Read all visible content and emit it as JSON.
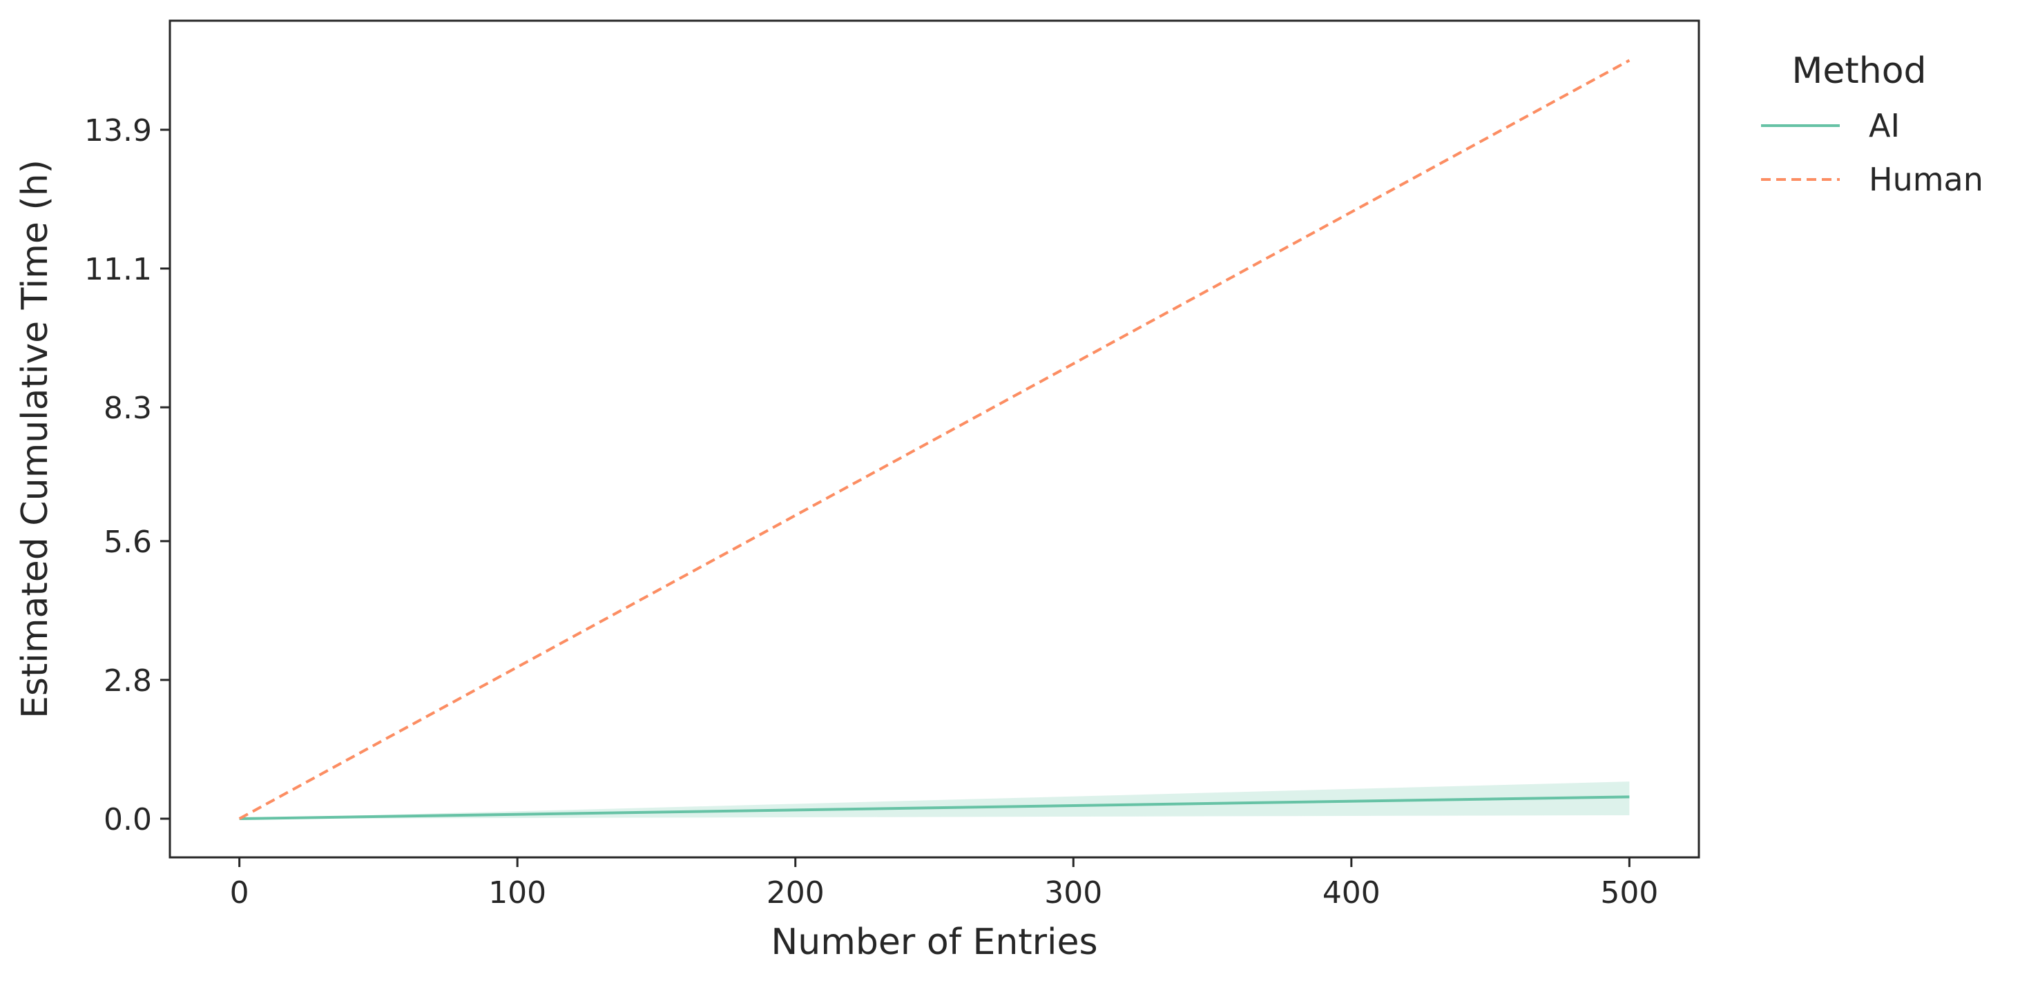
{
  "chart_data": {
    "type": "line",
    "xlabel": "Number of Entries",
    "ylabel": "Estimated Cumulative Time (h)",
    "x_ticks": [
      0,
      100,
      200,
      300,
      400,
      500
    ],
    "y_ticks": [
      "0.0",
      "2.8",
      "5.6",
      "8.3",
      "11.1",
      "13.9"
    ],
    "xlim": [
      -25,
      525
    ],
    "ylim": [
      -0.78,
      16.1
    ],
    "grid": false,
    "legend": {
      "title": "Method",
      "placement": "outside-right-top"
    },
    "series": [
      {
        "name": "AI",
        "style": "solid",
        "color": "#66c2a5",
        "x": [
          0,
          500
        ],
        "y": [
          0.0,
          0.44
        ],
        "band_lower": [
          0.0,
          0.07
        ],
        "band_upper": [
          0.0,
          0.75
        ]
      },
      {
        "name": "Human",
        "style": "dashed",
        "color": "#fc8d62",
        "x": [
          0,
          500
        ],
        "y": [
          0.0,
          15.3
        ]
      }
    ]
  }
}
